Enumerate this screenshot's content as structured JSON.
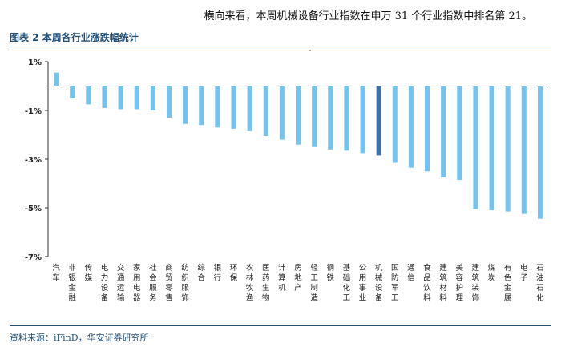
{
  "header": {
    "intro_text": "横向来看，本周机械设备行业指数在申万 31 个行业指数中排名第 21。",
    "figure_title": "图表 2 本周各行业涨跌幅统计",
    "source": "资料来源：iFinD，华安证券研究所"
  },
  "colors": {
    "bar": "#74c3ef",
    "highlight": "#3f6ea9",
    "rule": "#1f4e79"
  },
  "chart_data": {
    "type": "bar",
    "title": "",
    "xlabel": "",
    "ylabel": "",
    "ylim": [
      -7,
      1
    ],
    "yticks": [
      1,
      -1,
      -3,
      -5,
      -7
    ],
    "ytick_labels": [
      "1%",
      "-1%",
      "-3%",
      "-5%",
      "-7%"
    ],
    "highlight_category": "机械设备",
    "categories": [
      "汽车",
      "非银金融",
      "传媒",
      "电力设备",
      "交通运输",
      "家用电器",
      "社会服务",
      "商贸零售",
      "纺织服饰",
      "综合",
      "银行",
      "环保",
      "农林牧渔",
      "医药生物",
      "计算机",
      "房地产",
      "轻工制造",
      "钢铁",
      "基础化工",
      "公用事业",
      "机械设备",
      "国防军工",
      "通信",
      "食品饮料",
      "建筑材料",
      "美容护理",
      "建筑装饰",
      "煤炭",
      "有色金属",
      "电子",
      "石油石化"
    ],
    "values": [
      0.55,
      -0.5,
      -0.75,
      -0.9,
      -0.95,
      -0.95,
      -1.0,
      -1.3,
      -1.55,
      -1.6,
      -1.7,
      -1.75,
      -1.85,
      -2.05,
      -2.2,
      -2.4,
      -2.5,
      -2.6,
      -2.65,
      -2.75,
      -2.85,
      -3.15,
      -3.35,
      -3.5,
      -3.75,
      -3.85,
      -5.05,
      -5.1,
      -5.15,
      -5.25,
      -5.45
    ]
  }
}
